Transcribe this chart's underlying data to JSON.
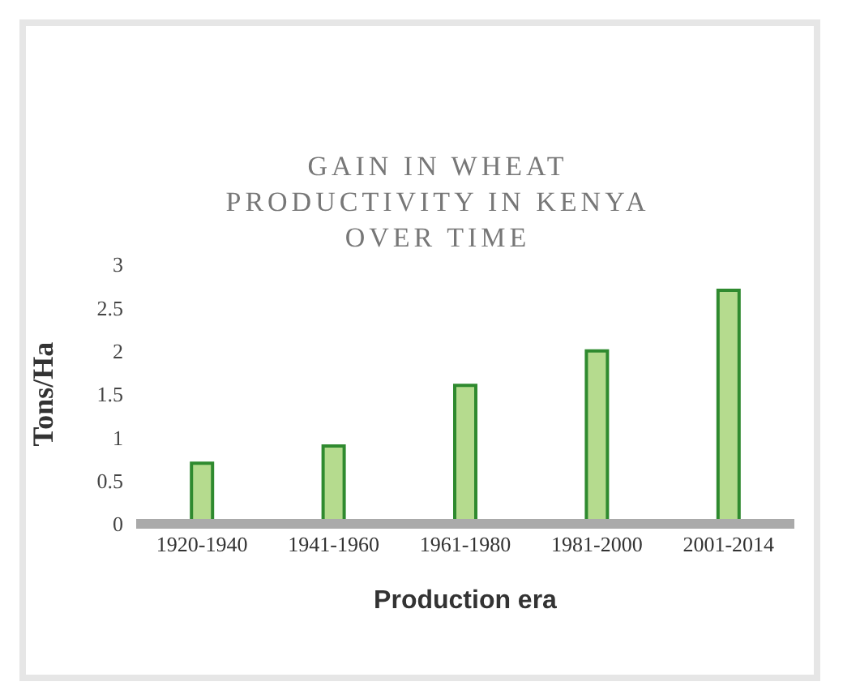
{
  "chart_data": {
    "type": "bar",
    "title": "GAIN IN WHEAT PRODUCTIVITY IN KENYA OVER TIME",
    "xlabel": "Production era",
    "ylabel": "Tons/Ha",
    "categories": [
      "1920-1940",
      "1941-1960",
      "1961-1980",
      "1981-2000",
      "2001-2014"
    ],
    "values": [
      0.7,
      0.9,
      1.6,
      2.0,
      2.7
    ],
    "color": "#b5db8e",
    "ylim": [
      0,
      3
    ],
    "yticks": [
      0,
      0.5,
      1,
      1.5,
      2,
      2.5,
      3
    ],
    "grid": false,
    "legend": false
  }
}
